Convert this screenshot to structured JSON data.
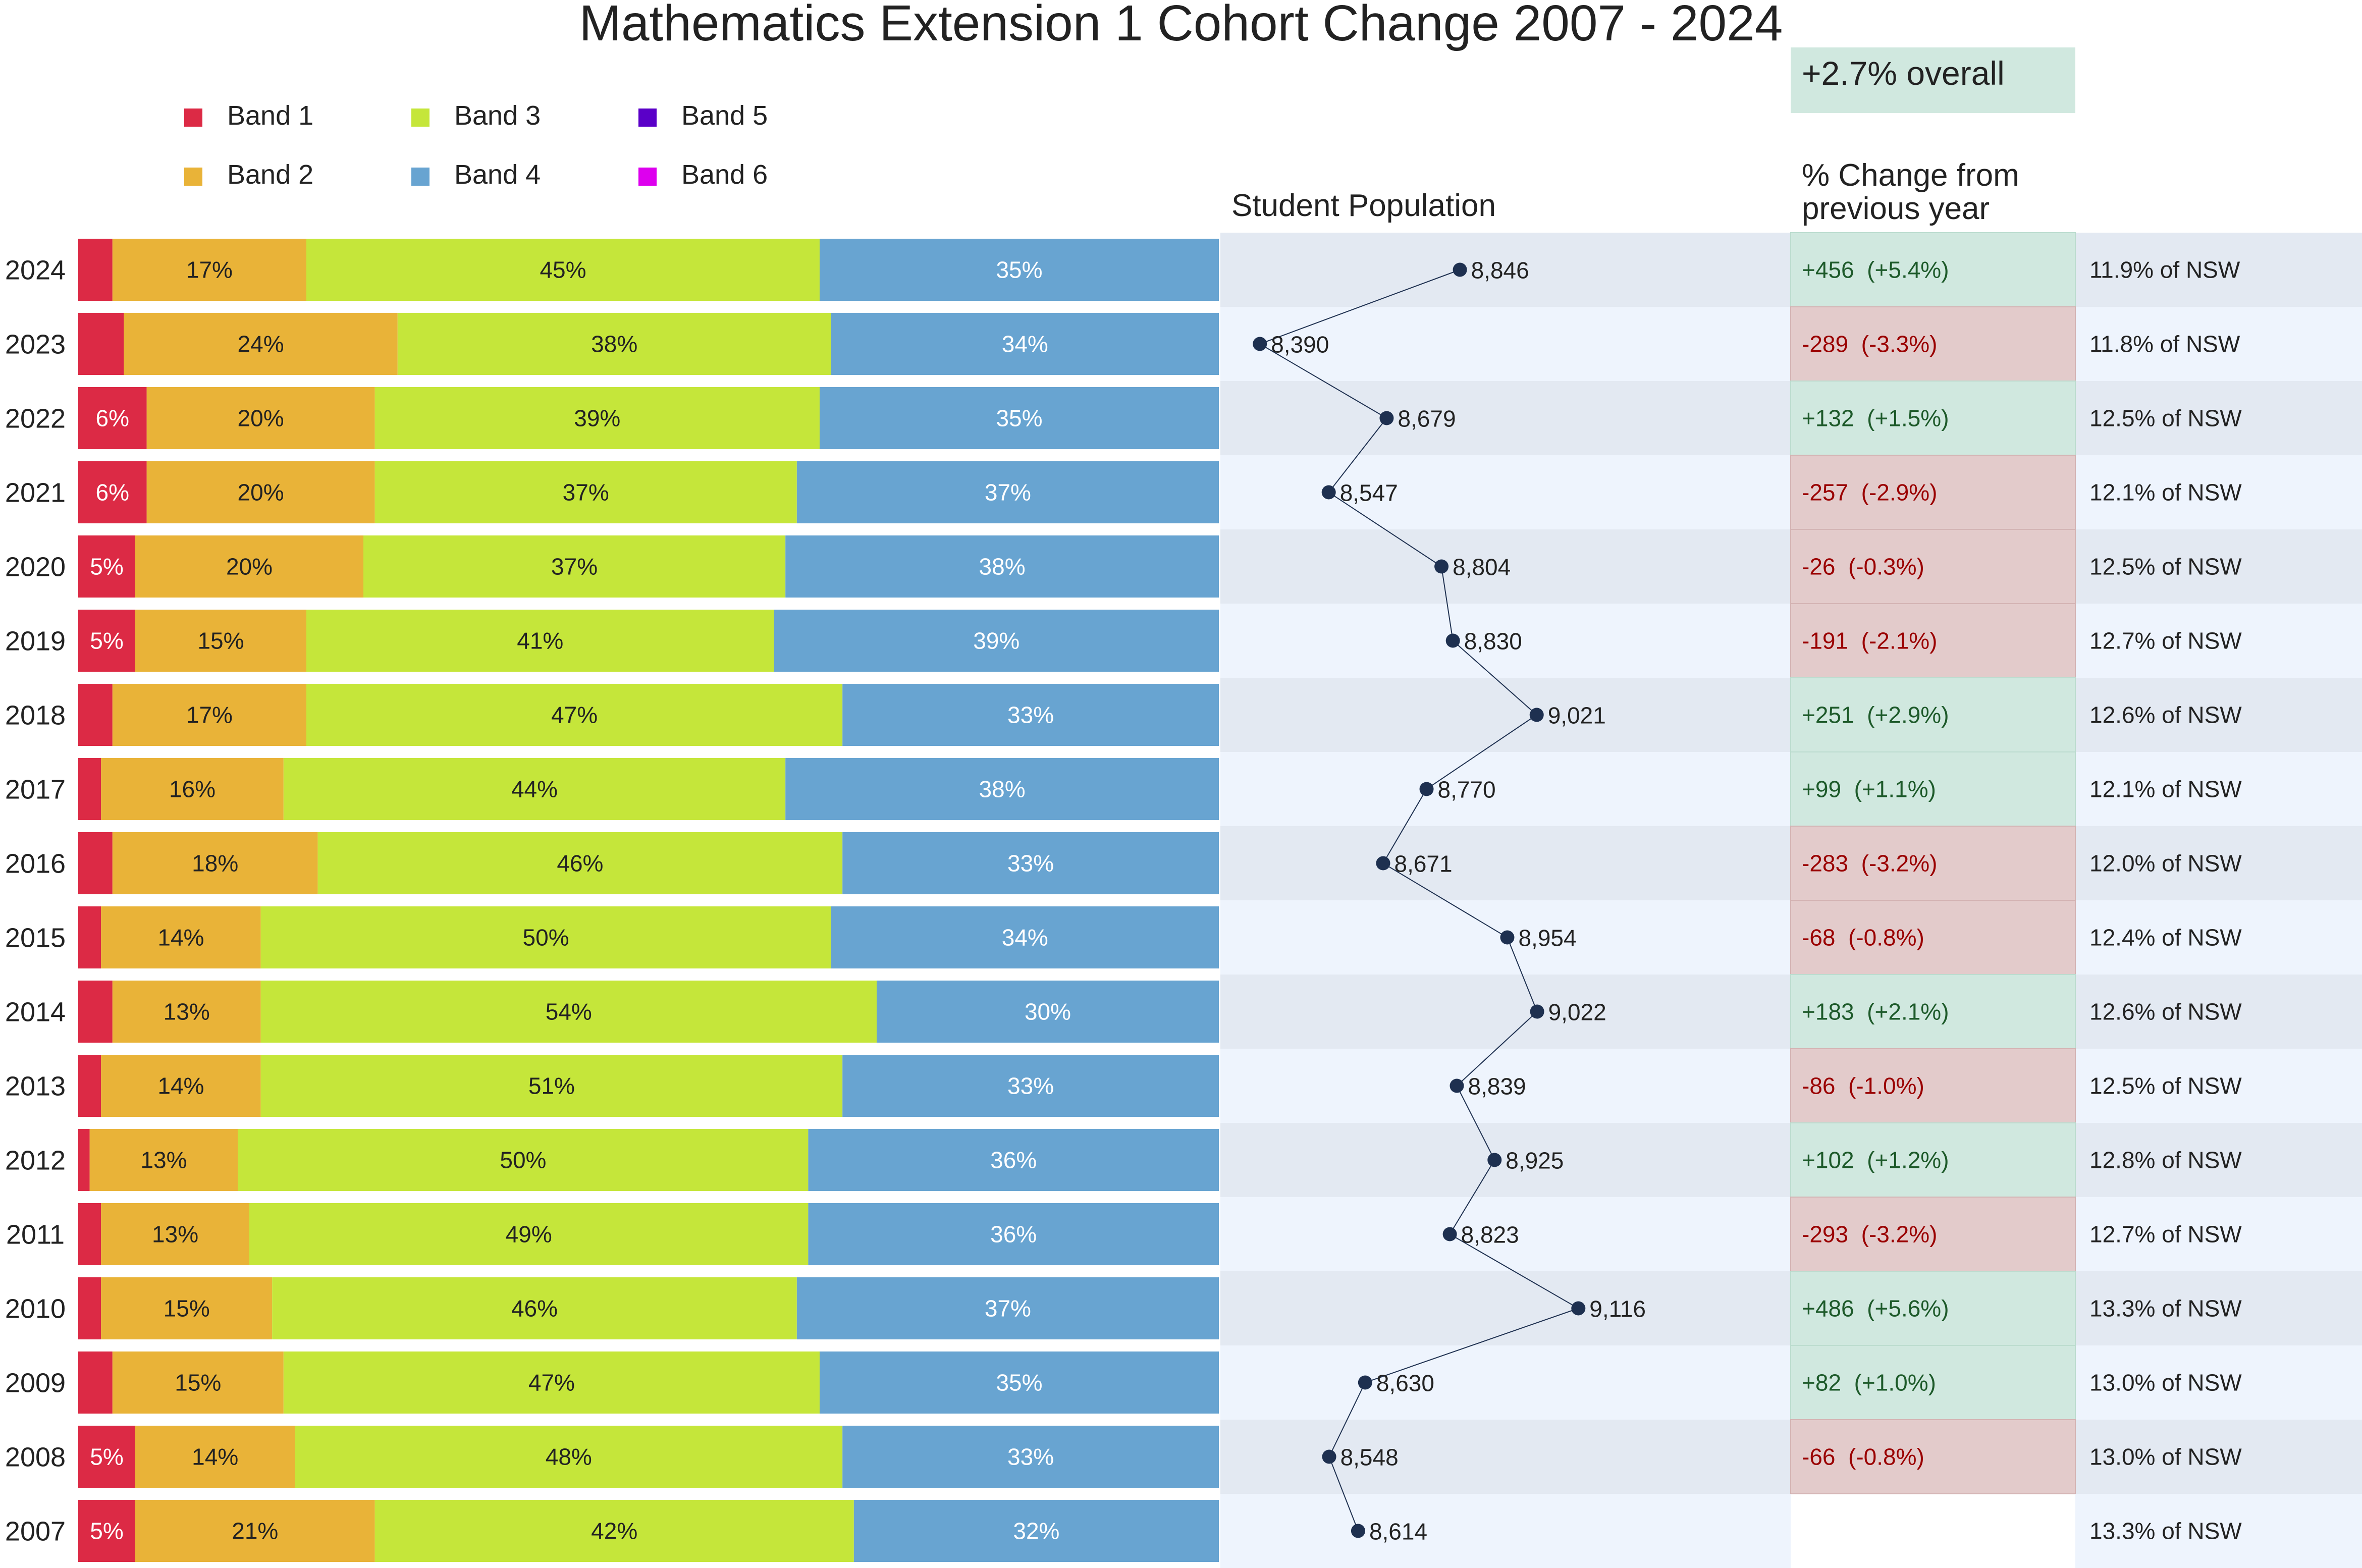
{
  "chart_data": {
    "type": "bar",
    "title": "Mathematics Extension 1 Cohort Change 2007 - 2024",
    "legend": [
      {
        "name": "Band 1",
        "color": "#dc2a45"
      },
      {
        "name": "Band 2",
        "color": "#e9b338"
      },
      {
        "name": "Band 3",
        "color": "#c5e63a"
      },
      {
        "name": "Band 4",
        "color": "#68a4d1"
      },
      {
        "name": "Band 5",
        "color": "#5a00c8"
      },
      {
        "name": "Band 6",
        "color": "#dd00ee"
      }
    ],
    "population_title": "Student Population",
    "change_title_line1": "% Change from",
    "change_title_line2": "previous year",
    "overall_label": "+2.7% overall",
    "population_axis": [
      8300,
      9600
    ],
    "years": [
      "2024",
      "2023",
      "2022",
      "2021",
      "2020",
      "2019",
      "2018",
      "2017",
      "2016",
      "2015",
      "2014",
      "2013",
      "2012",
      "2011",
      "2010",
      "2009",
      "2008",
      "2007"
    ],
    "bands": [
      [
        3,
        17,
        45,
        35
      ],
      [
        4,
        24,
        38,
        34
      ],
      [
        6,
        20,
        39,
        35
      ],
      [
        6,
        20,
        37,
        37
      ],
      [
        5,
        20,
        37,
        38
      ],
      [
        5,
        15,
        41,
        39
      ],
      [
        3,
        17,
        47,
        33
      ],
      [
        2,
        16,
        44,
        38
      ],
      [
        3,
        18,
        46,
        33
      ],
      [
        2,
        14,
        50,
        34
      ],
      [
        3,
        13,
        54,
        30
      ],
      [
        2,
        14,
        51,
        33
      ],
      [
        1,
        13,
        50,
        36
      ],
      [
        2,
        13,
        49,
        36
      ],
      [
        2,
        15,
        46,
        37
      ],
      [
        3,
        15,
        47,
        35
      ],
      [
        5,
        14,
        48,
        33
      ],
      [
        5,
        21,
        42,
        32
      ]
    ],
    "band_labels": [
      [
        "",
        "17%",
        "45%",
        "35%"
      ],
      [
        "",
        "24%",
        "38%",
        "34%"
      ],
      [
        "6%",
        "20%",
        "39%",
        "35%"
      ],
      [
        "6%",
        "20%",
        "37%",
        "37%"
      ],
      [
        "5%",
        "20%",
        "37%",
        "38%"
      ],
      [
        "5%",
        "15%",
        "41%",
        "39%"
      ],
      [
        "",
        "17%",
        "47%",
        "33%"
      ],
      [
        "",
        "16%",
        "44%",
        "38%"
      ],
      [
        "",
        "18%",
        "46%",
        "33%"
      ],
      [
        "",
        "14%",
        "50%",
        "34%"
      ],
      [
        "",
        "13%",
        "54%",
        "30%"
      ],
      [
        "",
        "14%",
        "51%",
        "33%"
      ],
      [
        "",
        "13%",
        "50%",
        "36%"
      ],
      [
        "",
        "13%",
        "49%",
        "36%"
      ],
      [
        "",
        "15%",
        "46%",
        "37%"
      ],
      [
        "",
        "15%",
        "47%",
        "35%"
      ],
      [
        "5%",
        "14%",
        "48%",
        "33%"
      ],
      [
        "5%",
        "21%",
        "42%",
        "32%"
      ]
    ],
    "population": [
      8846,
      8390,
      8679,
      8547,
      8804,
      8830,
      9021,
      8770,
      8671,
      8954,
      9022,
      8839,
      8925,
      8823,
      9116,
      8630,
      8548,
      8614
    ],
    "population_labels": [
      "8,846",
      "8,390",
      "8,679",
      "8,547",
      "8,804",
      "8,830",
      "9,021",
      "8,770",
      "8,671",
      "8,954",
      "9,022",
      "8,839",
      "8,925",
      "8,823",
      "9,116",
      "8,630",
      "8,548",
      "8,614"
    ],
    "change": [
      "+456  (+5.4%)",
      "-289  (-3.3%)",
      "+132  (+1.5%)",
      "-257  (-2.9%)",
      "-26  (-0.3%)",
      "-191  (-2.1%)",
      "+251  (+2.9%)",
      "+99  (+1.1%)",
      "-283  (-3.2%)",
      "-68  (-0.8%)",
      "+183  (+2.1%)",
      "-86  (-1.0%)",
      "+102  (+1.2%)",
      "-293  (-3.2%)",
      "+486  (+5.6%)",
      "+82  (+1.0%)",
      "-66  (-0.8%)",
      ""
    ],
    "change_positive": [
      true,
      false,
      true,
      false,
      false,
      false,
      true,
      true,
      false,
      false,
      true,
      false,
      true,
      false,
      true,
      true,
      false,
      null
    ],
    "nsw_share": [
      "11.9% of NSW",
      "11.8% of NSW",
      "12.5% of NSW",
      "12.1% of NSW",
      "12.5% of NSW",
      "12.7% of NSW",
      "12.6% of NSW",
      "12.1% of NSW",
      "12.0% of NSW",
      "12.4% of NSW",
      "12.6% of NSW",
      "12.5% of NSW",
      "12.8% of NSW",
      "12.7% of NSW",
      "13.3% of NSW",
      "13.0% of NSW",
      "13.0% of NSW",
      "13.3% of NSW"
    ],
    "colors": {
      "pop_row_even": "#e3e9f2",
      "pop_row_odd": "#eef4fd",
      "positive_fill": "#d0e8df",
      "negative_fill": "#e3cbcb",
      "positive_text": "#1d5a2a",
      "negative_text": "#9a0000",
      "line": "#1e3050"
    }
  }
}
